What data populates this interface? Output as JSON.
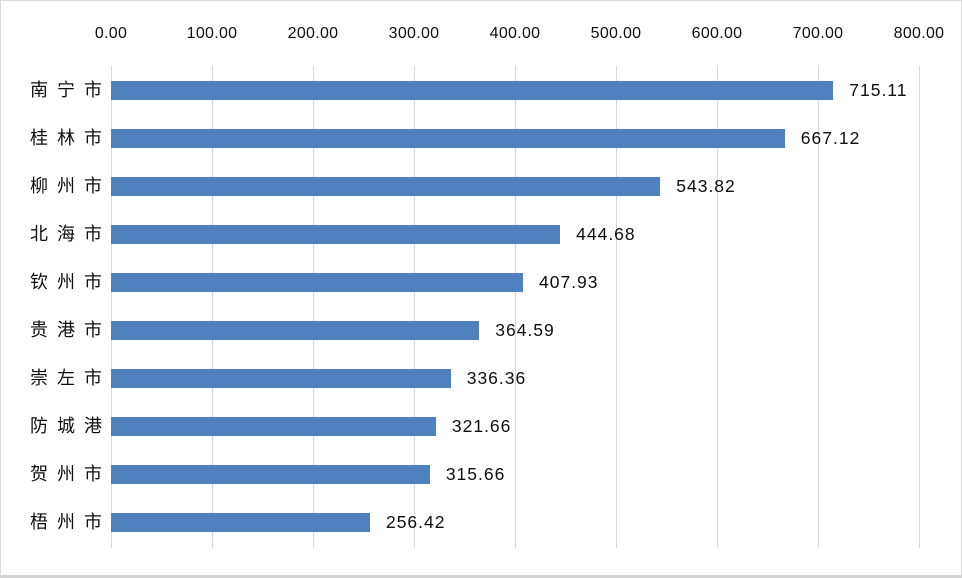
{
  "chart": {
    "background_color": "#FFFFFF",
    "frame_border_color": "#D9D9D9",
    "text_color": "#0E0E0E",
    "bar_color": "#4E81BD",
    "gridline_color": "#D6D6D6"
  },
  "chart_data": {
    "type": "bar",
    "orientation": "horizontal",
    "title": "",
    "xlabel": "",
    "ylabel": "",
    "xlim": [
      0,
      800
    ],
    "grid": true,
    "legend": false,
    "x_axis_position": "top",
    "x_tick_values": [
      0,
      100,
      200,
      300,
      400,
      500,
      600,
      700,
      800
    ],
    "x_tick_labels": [
      "0.00",
      "100.00",
      "200.00",
      "300.00",
      "400.00",
      "500.00",
      "600.00",
      "700.00",
      "800.00"
    ],
    "categories": [
      "南宁市",
      "桂林市",
      "柳州市",
      "北海市",
      "钦州市",
      "贵港市",
      "崇左市",
      "防城港",
      "贺州市",
      "梧州市"
    ],
    "values": [
      715.11,
      667.12,
      543.82,
      444.68,
      407.93,
      364.59,
      336.36,
      321.66,
      315.66,
      256.42
    ],
    "value_labels": [
      "715.11",
      "667.12",
      "543.82",
      "444.68",
      "407.93",
      "364.59",
      "336.36",
      "321.66",
      "315.66",
      "256.42"
    ]
  }
}
